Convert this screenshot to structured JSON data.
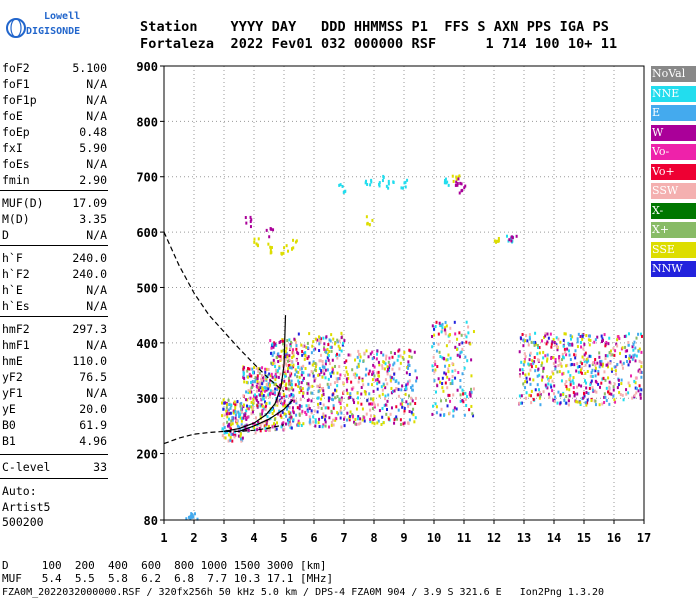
{
  "logo": {
    "line1": "Lowell",
    "line2": "DIGISONDE"
  },
  "header": {
    "row1": "Station    YYYY DAY   DDD HHMMSS P1  FFS S AXN PPS IGA PS",
    "row2": "Fortaleza  2022 Fev01 032 000000 RSF      1 714 100 10+ 11"
  },
  "params": [
    {
      "k": "foF2",
      "v": "5.100"
    },
    {
      "k": "foF1",
      "v": "N/A"
    },
    {
      "k": "foF1p",
      "v": "N/A"
    },
    {
      "k": "foE",
      "v": "N/A"
    },
    {
      "k": "foEp",
      "v": "0.48"
    },
    {
      "k": "fxI",
      "v": "5.90"
    },
    {
      "k": "foEs",
      "v": "N/A"
    },
    {
      "k": "fmin",
      "v": "2.90"
    },
    {
      "k": "MUF(D)",
      "v": "17.09"
    },
    {
      "k": "M(D)",
      "v": "3.35"
    },
    {
      "k": "D",
      "v": "N/A"
    },
    {
      "k": "h`F",
      "v": "240.0"
    },
    {
      "k": "h`F2",
      "v": "240.0"
    },
    {
      "k": "h`E",
      "v": "N/A"
    },
    {
      "k": "h`Es",
      "v": "N/A"
    },
    {
      "k": "hmF2",
      "v": "297.3"
    },
    {
      "k": "hmF1",
      "v": "N/A"
    },
    {
      "k": "hmE",
      "v": "110.0"
    },
    {
      "k": "yF2",
      "v": "76.5"
    },
    {
      "k": "yF1",
      "v": "N/A"
    },
    {
      "k": "yE",
      "v": "20.0"
    },
    {
      "k": "B0",
      "v": "61.9"
    },
    {
      "k": "B1",
      "v": "4.96"
    },
    {
      "k": "C-level",
      "v": "33"
    }
  ],
  "auto": {
    "line1": "Auto:",
    "line2": "Artist5",
    "line3": "500200"
  },
  "legend": [
    {
      "label": "NoVal",
      "color": "#888888"
    },
    {
      "label": "NNE",
      "color": "#22ddee"
    },
    {
      "label": "E",
      "color": "#44aaee"
    },
    {
      "label": "W",
      "color": "#aa0099"
    },
    {
      "label": "Vo-",
      "color": "#ee22aa"
    },
    {
      "label": "Vo+",
      "color": "#ee0033"
    },
    {
      "label": "SSW",
      "color": "#f4b0b0"
    },
    {
      "label": "X-",
      "color": "#007700"
    },
    {
      "label": "X+",
      "color": "#88bb66"
    },
    {
      "label": "SSE",
      "color": "#dddd00"
    },
    {
      "label": "NNW",
      "color": "#2222dd"
    }
  ],
  "footer": {
    "line1": "D     100  200  400  600  800 1000 1500 3000 [km]",
    "line2": "MUF   5.4  5.5  5.8  6.2  6.8  7.7 10.3 17.1 [MHz]",
    "line3": "FZA0M_2022032000000.RSF / 320fx256h 50 kHz 5.0 km / DPS-4 FZA0M 904 / 3.9 S 321.6 E   Ion2Png 1.3.20"
  },
  "chart_data": {
    "type": "scatter",
    "xlabel": "",
    "ylabel": "",
    "xlim": [
      1,
      17
    ],
    "ylim": [
      80,
      900
    ],
    "x_ticks": [
      1,
      2,
      3,
      4,
      5,
      6,
      7,
      8,
      9,
      10,
      11,
      12,
      13,
      14,
      15,
      16,
      17
    ],
    "y_ticks": [
      80,
      200,
      300,
      400,
      500,
      600,
      700,
      800,
      900
    ],
    "grid": true,
    "legend_position": "right",
    "clusters": [
      {
        "name": "NNE",
        "points": [
          [
            7.8,
            690
          ],
          [
            8.2,
            695
          ],
          [
            8.5,
            688
          ],
          [
            9.0,
            690
          ],
          [
            6.9,
            683
          ],
          [
            10.4,
            695
          ],
          [
            12.5,
            590
          ]
        ]
      },
      {
        "name": "SSE",
        "points": [
          [
            4.0,
            585
          ],
          [
            4.5,
            575
          ],
          [
            5.0,
            570
          ],
          [
            5.3,
            580
          ],
          [
            7.8,
            622
          ],
          [
            10.7,
            695
          ],
          [
            12.1,
            590
          ]
        ]
      },
      {
        "name": "W",
        "points": [
          [
            3.8,
            620
          ],
          [
            4.5,
            600
          ],
          [
            10.8,
            690
          ],
          [
            10.9,
            680
          ],
          [
            12.6,
            590
          ]
        ]
      },
      {
        "name": "E",
        "points": [
          [
            2.0,
            90
          ],
          [
            1.8,
            85
          ]
        ]
      }
    ],
    "traces": [
      {
        "name": "dashed upper",
        "style": "dashed",
        "points": [
          [
            1.0,
            600
          ],
          [
            1.5,
            540
          ],
          [
            2.0,
            490
          ],
          [
            2.5,
            450
          ],
          [
            3.0,
            420
          ],
          [
            3.5,
            390
          ],
          [
            4.0,
            362
          ],
          [
            4.5,
            335
          ],
          [
            5.0,
            312
          ]
        ]
      },
      {
        "name": "dashed lower",
        "style": "dashed",
        "points": [
          [
            1.0,
            218
          ],
          [
            1.5,
            228
          ],
          [
            2.0,
            235
          ],
          [
            2.5,
            238
          ],
          [
            3.0,
            240
          ],
          [
            3.5,
            240
          ],
          [
            4.0,
            242
          ],
          [
            4.5,
            246
          ],
          [
            5.0,
            252
          ]
        ]
      },
      {
        "name": "trace O",
        "style": "solid",
        "points": [
          [
            3.0,
            240
          ],
          [
            3.5,
            245
          ],
          [
            4.0,
            255
          ],
          [
            4.4,
            270
          ],
          [
            4.7,
            290
          ],
          [
            4.9,
            320
          ],
          [
            5.0,
            360
          ],
          [
            5.05,
            450
          ]
        ]
      },
      {
        "name": "trace X",
        "style": "solid",
        "points": [
          [
            3.5,
            240
          ],
          [
            4.0,
            250
          ],
          [
            4.5,
            262
          ],
          [
            5.0,
            280
          ],
          [
            5.3,
            297
          ]
        ]
      }
    ]
  }
}
